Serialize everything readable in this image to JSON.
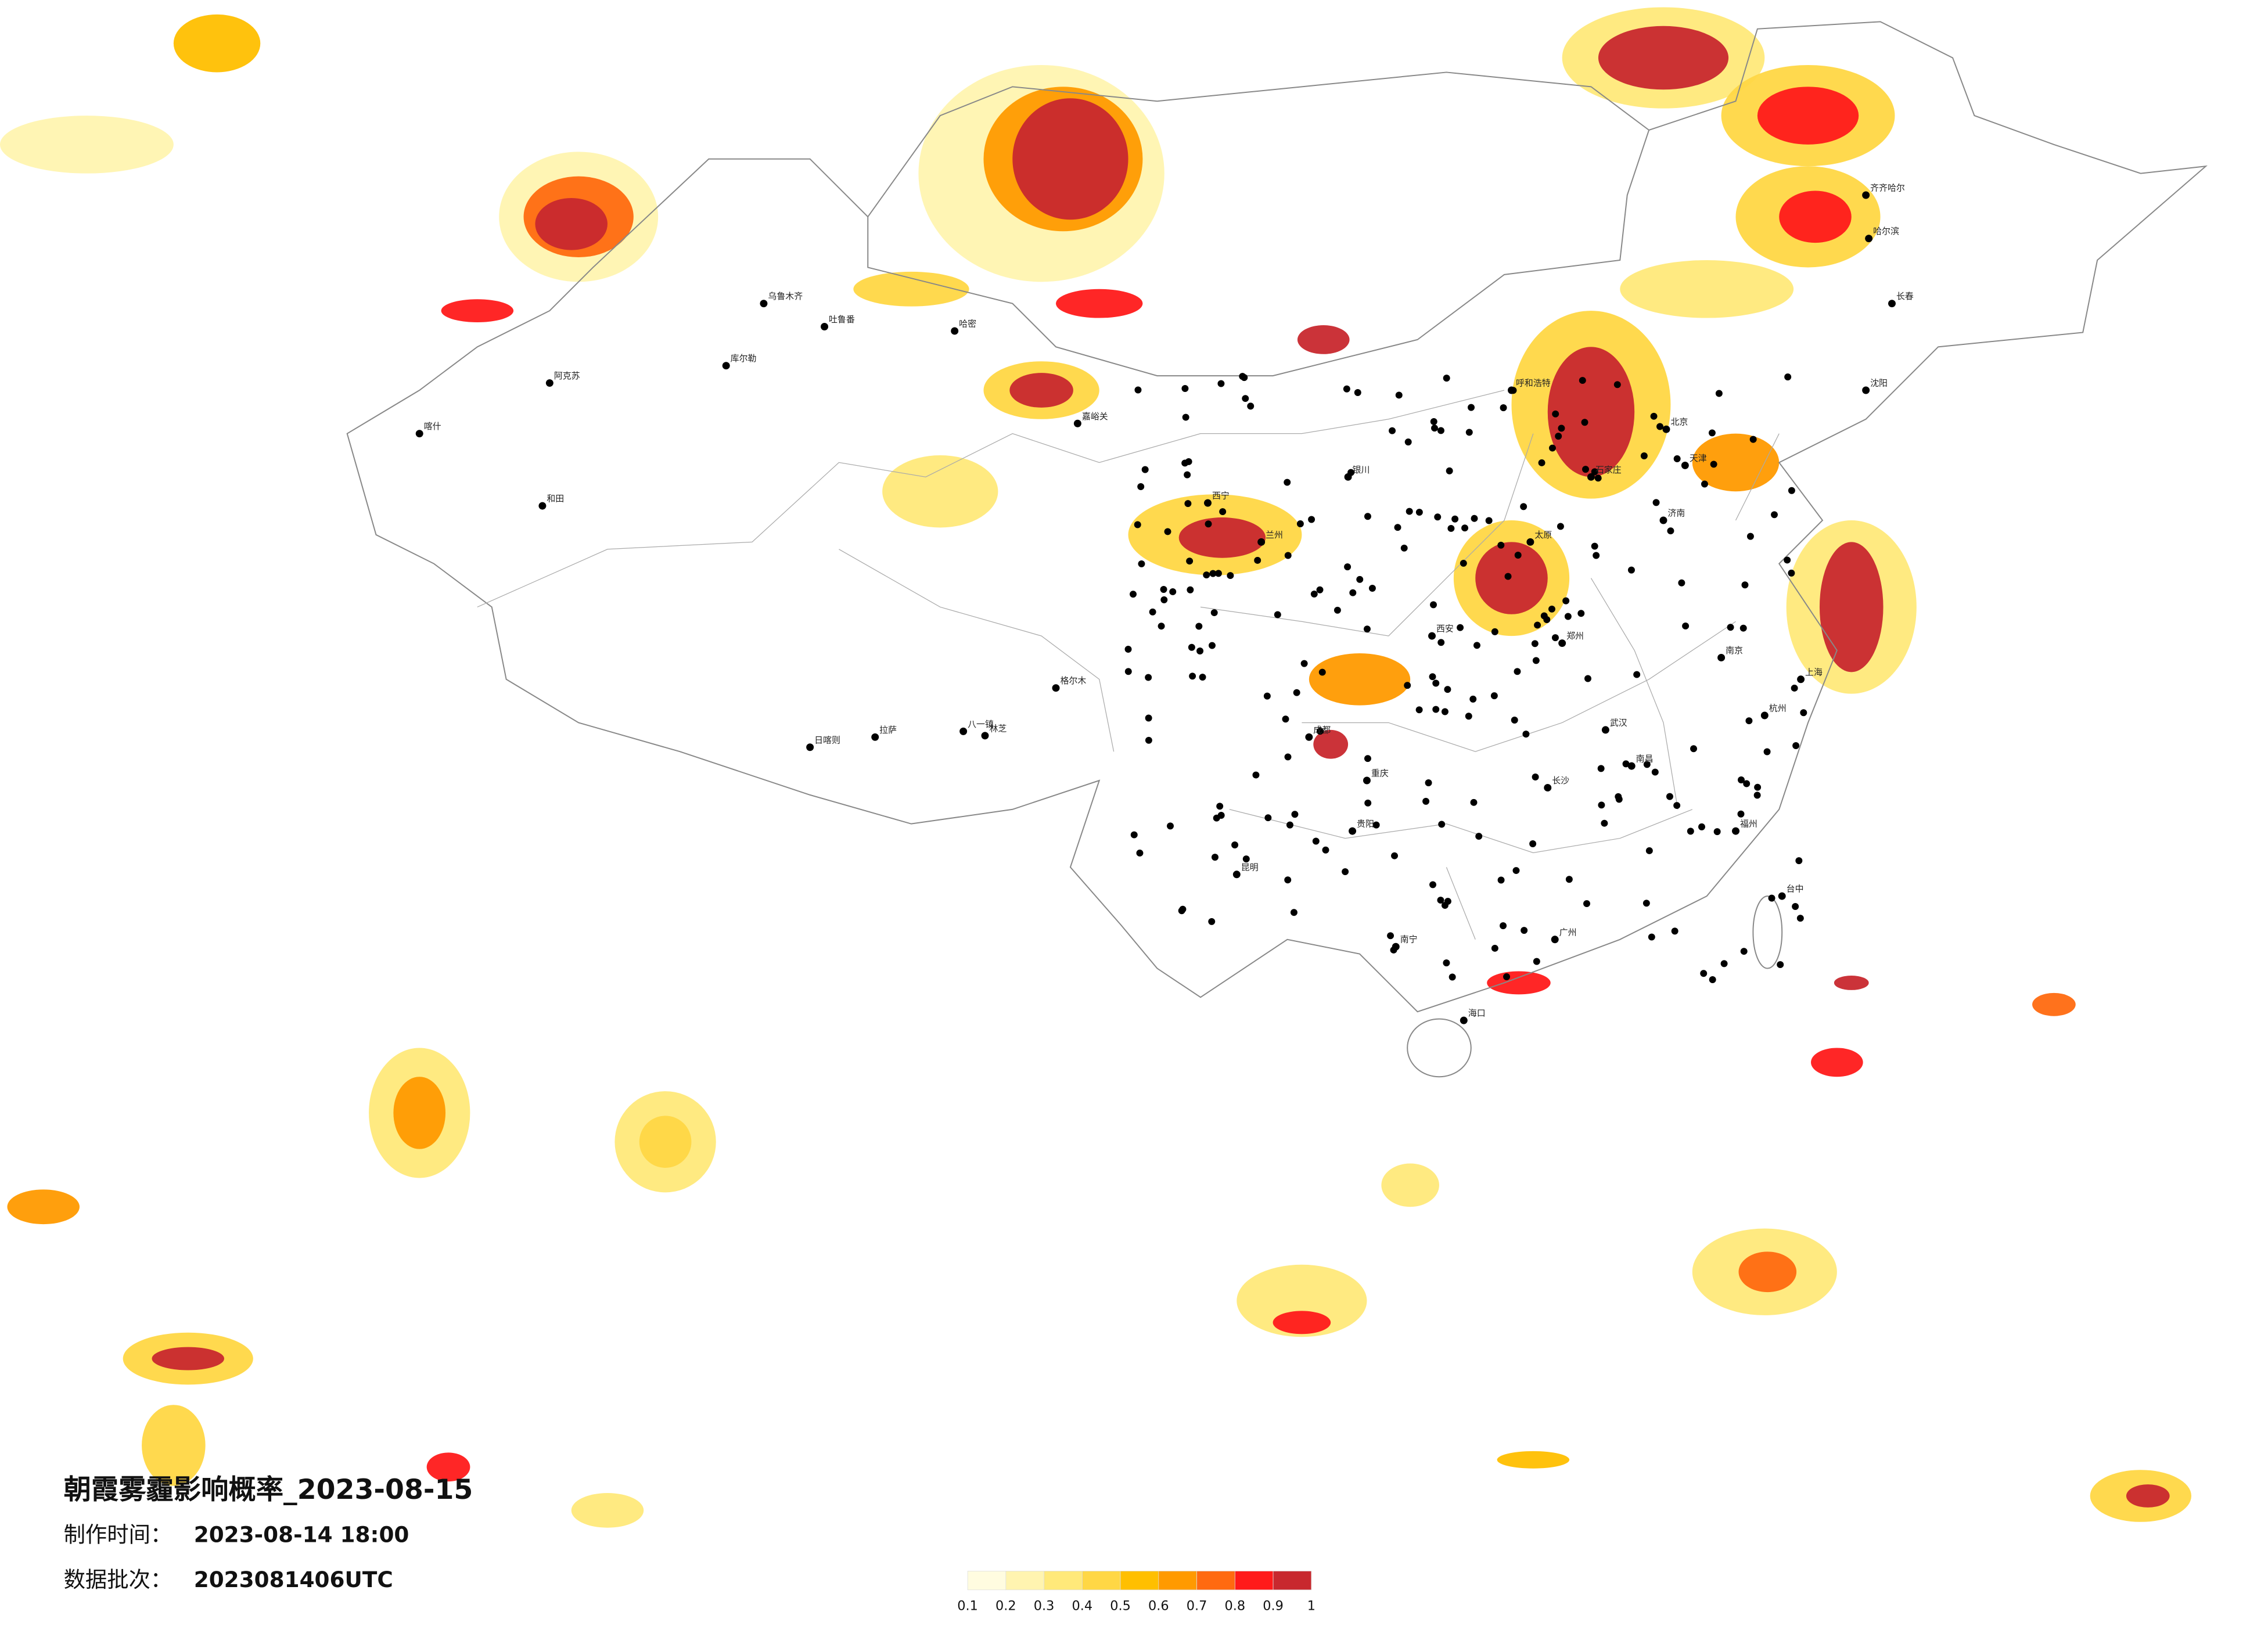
{
  "header": {
    "title": "朝霞雾霾影响概率_2023-08-15",
    "time_label": "制作时间：",
    "time_value": "2023-08-14 18:00",
    "batch_label": "数据批次：",
    "batch_value": "2023081406UTC"
  },
  "legend": {
    "ticks": [
      0.1,
      0.2,
      0.3,
      0.4,
      0.5,
      0.6,
      0.7,
      0.8,
      0.9,
      1
    ],
    "colors": [
      "#fffce0",
      "#fff4b0",
      "#ffe97a",
      "#ffd745",
      "#ffbf00",
      "#ff9a00",
      "#ff6a10",
      "#ff1a1a",
      "#c8282e"
    ]
  },
  "cities": [
    "乌鲁木齐",
    "吐鲁番",
    "哈密",
    "库尔勒",
    "阿克苏",
    "喀什",
    "和田",
    "日喀则",
    "拉萨",
    "八一镇",
    "林芝",
    "格尔木",
    "嘉峪关",
    "西宁",
    "兰州",
    "银川",
    "呼和浩特",
    "齐齐哈尔",
    "哈尔滨",
    "长春",
    "沈阳",
    "北京",
    "天津",
    "石家庄",
    "太原",
    "济南",
    "郑州",
    "西安",
    "成都",
    "重庆",
    "武汉",
    "南京",
    "上海",
    "杭州",
    "长沙",
    "南昌",
    "贵阳",
    "昆明",
    "南宁",
    "广州",
    "福州",
    "台中",
    "海口"
  ]
}
